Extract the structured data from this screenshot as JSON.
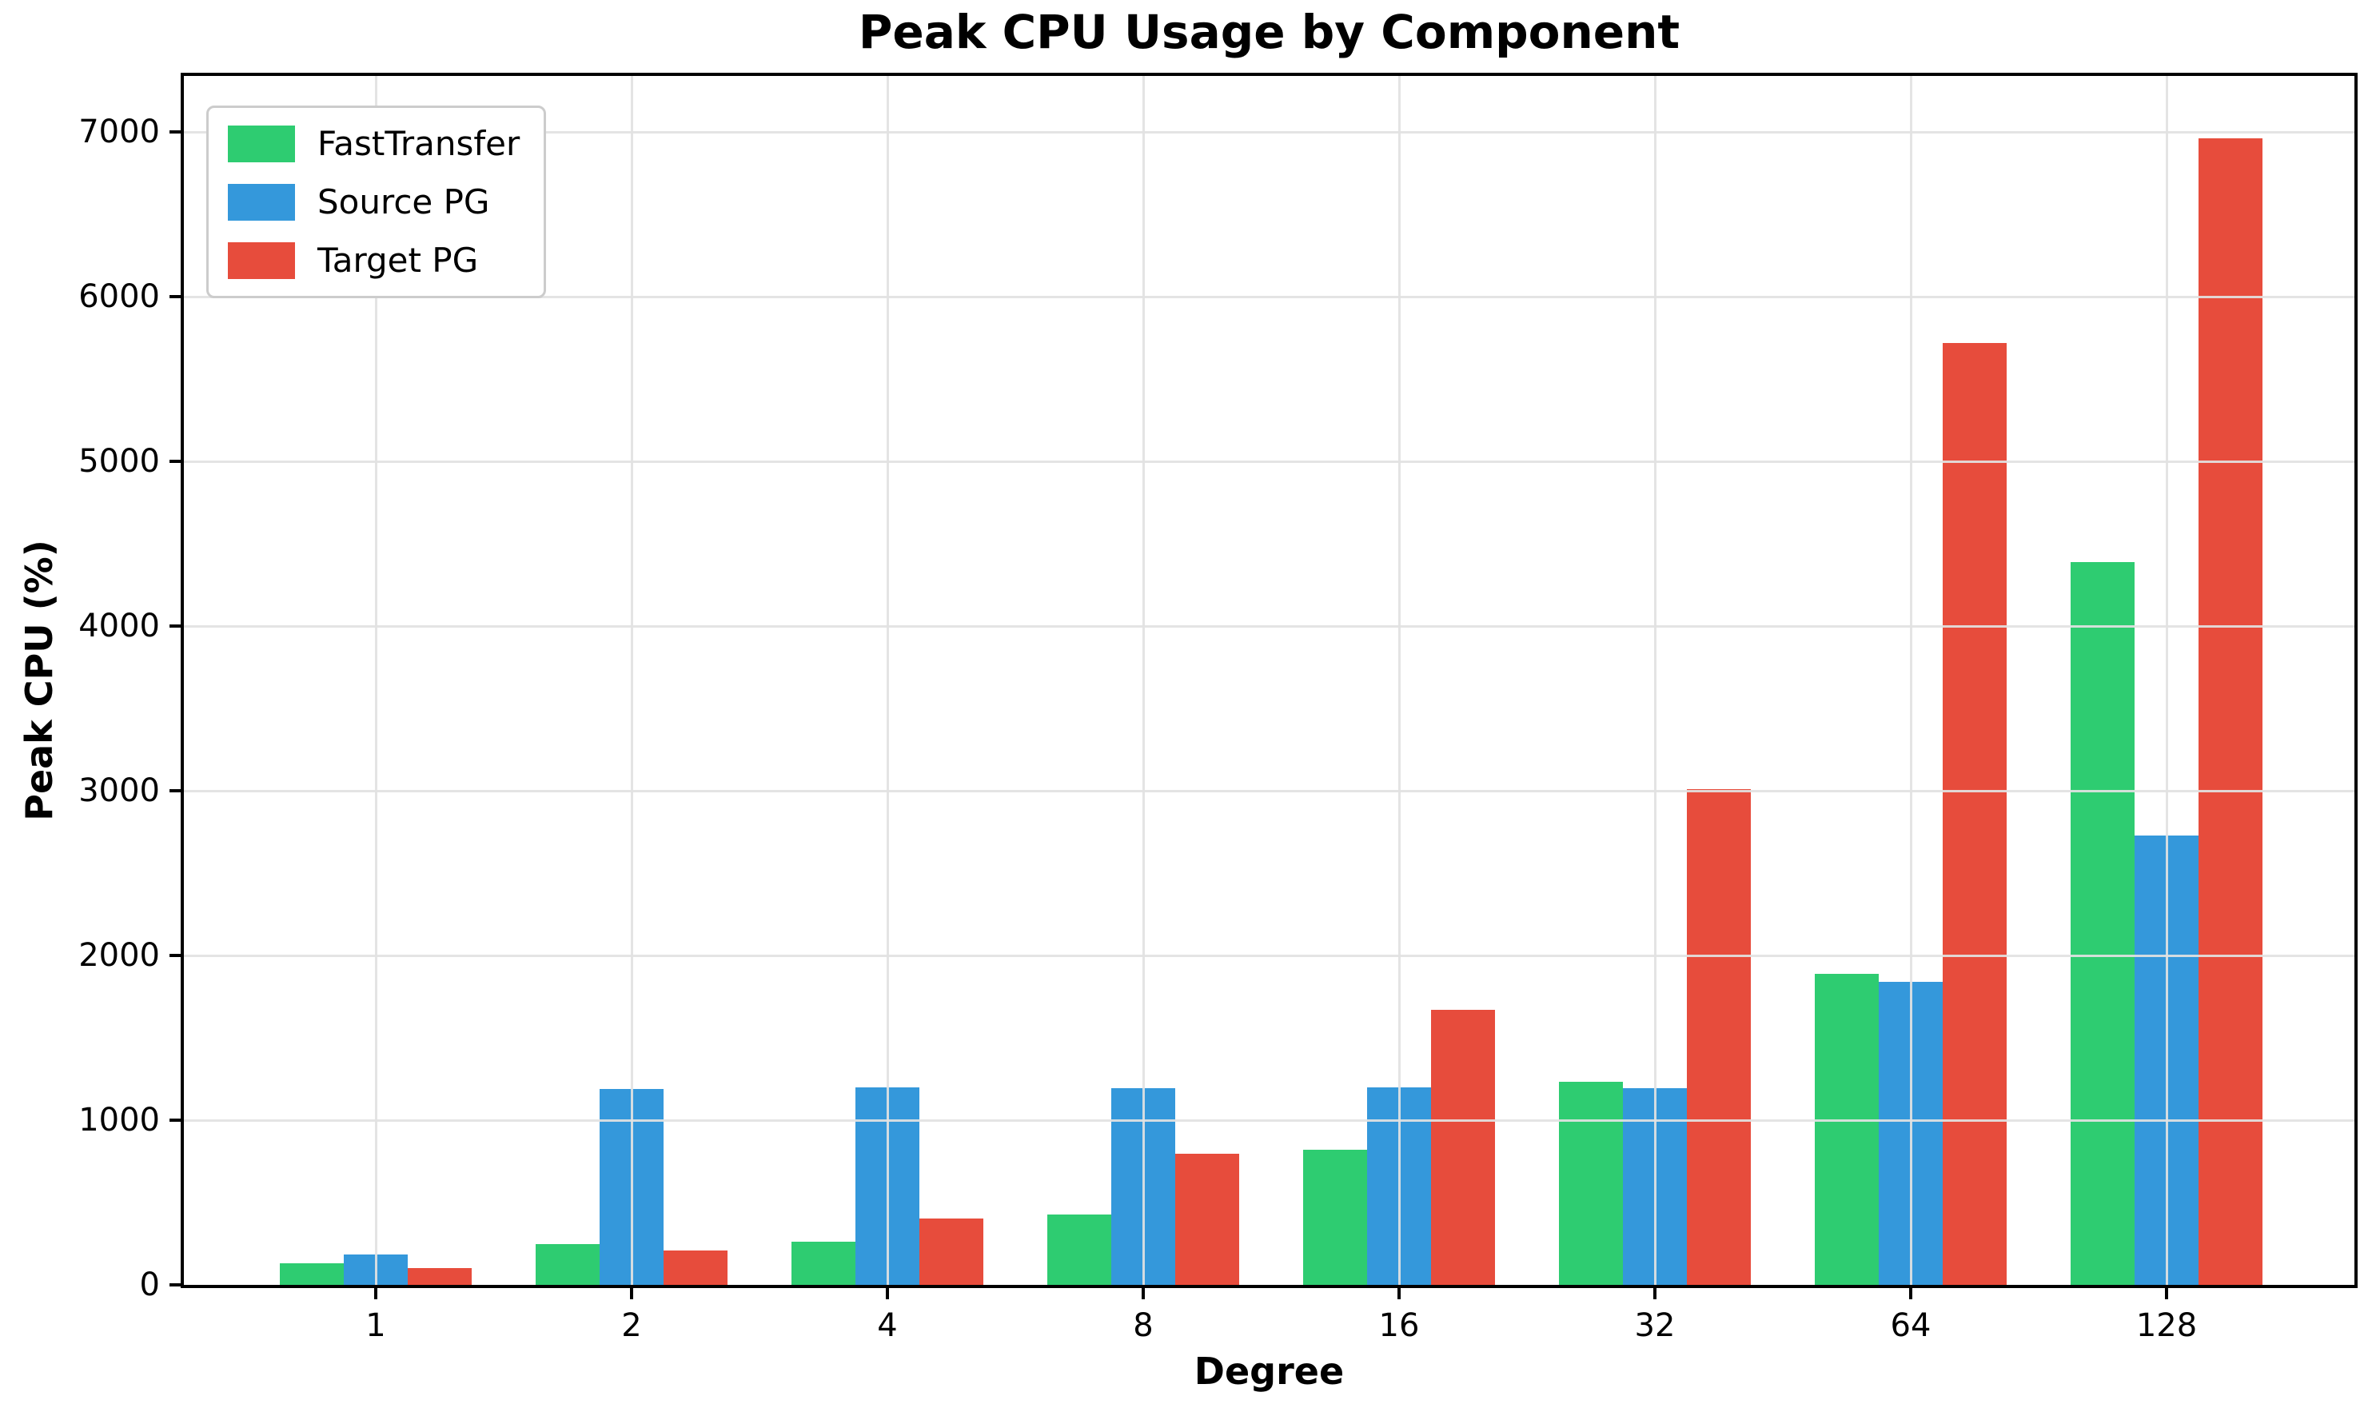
{
  "chart_data": {
    "type": "bar",
    "title": "Peak CPU Usage by Component",
    "xlabel": "Degree",
    "ylabel": "Peak CPU (%)",
    "categories": [
      "1",
      "2",
      "4",
      "8",
      "16",
      "32",
      "64",
      "128"
    ],
    "series": [
      {
        "name": "FastTransfer",
        "color": "#2ecc71",
        "values": [
          130,
          250,
          260,
          425,
          820,
          1235,
          1890,
          4390
        ]
      },
      {
        "name": "Source PG",
        "color": "#3498db",
        "values": [
          185,
          1190,
          1200,
          1195,
          1200,
          1195,
          1840,
          2730
        ]
      },
      {
        "name": "Target PG",
        "color": "#e74c3c",
        "values": [
          100,
          210,
          405,
          795,
          1670,
          3010,
          5720,
          6960
        ]
      }
    ],
    "yticks": [
      0,
      1000,
      2000,
      3000,
      4000,
      5000,
      6000,
      7000
    ],
    "ylim": [
      0,
      7340
    ],
    "grid": true,
    "grid_above_bars": true,
    "legend_position": "upper left",
    "spine_color": "#000000",
    "grid_color": "#e2e2e2",
    "background_color": "#ffffff"
  }
}
